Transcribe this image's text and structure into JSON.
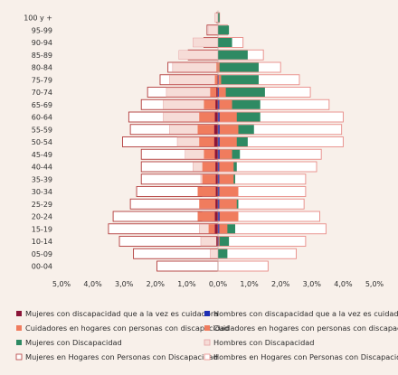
{
  "chart_data": {
    "type": "bar",
    "title": "",
    "xlabel": "",
    "ylabel": "",
    "xlim": [
      -5,
      5
    ],
    "x_ticks": [
      "5,0%",
      "4,0%",
      "3,0%",
      "2,0%",
      "1,0%",
      "0,0%",
      "1,0%",
      "2,0%",
      "3,0%",
      "4,0%",
      "5,0%"
    ],
    "grid": false,
    "legend_position": "bottom",
    "categories": [
      "100 y +",
      "95-99",
      "90-94",
      "85-89",
      "80-84",
      "75-79",
      "70-74",
      "65-69",
      "60-64",
      "55-59",
      "50-54",
      "45-49",
      "40-44",
      "35-39",
      "30-34",
      "25-29",
      "20-24",
      "15-19",
      "10-14",
      "05-09",
      "00-04"
    ],
    "colors": {
      "background": "#f8f0ea",
      "mujeres_cuidadora": "#8b1538",
      "hombres_cuidador": "#1f2fb5",
      "cuidadores_hogares": "#f07c5e",
      "mujeres_discapacidad": "#2e8a63",
      "hombres_discapacidad": "#f6dcd7",
      "hombres_discapacidad_border": "#e5a2a2",
      "mujeres_hogares_fill": "#ffffff",
      "mujeres_hogares_border": "#b23a3a",
      "hombres_hogares_border": "#e88b87"
    },
    "series": [
      {
        "name": "Mujeres con discapacidad que a la vez es cuidadora",
        "values": [
          0,
          0,
          0,
          0,
          0,
          0.02,
          0.05,
          0.08,
          0.1,
          0.12,
          0.12,
          0.1,
          0.08,
          0.07,
          0.07,
          0.08,
          0.1,
          0.1,
          0.05,
          0,
          0
        ]
      },
      {
        "name": "Hombres con discapacidad que a la vez es cuidador",
        "values": [
          0,
          0,
          0,
          0,
          0,
          0.02,
          0.03,
          0.04,
          0.05,
          0.05,
          0.05,
          0.05,
          0.04,
          0.04,
          0.04,
          0.04,
          0.05,
          0.04,
          0.02,
          0,
          0
        ]
      },
      {
        "name": "Cuidadores en hogares con personas con discapacidad",
        "values": [
          0,
          0,
          0,
          0,
          0.05,
          0.1,
          0.25,
          0.45,
          0.6,
          0.65,
          0.6,
          0.45,
          0.5,
          0.5,
          0.65,
          0.6,
          0.65,
          0.3,
          0.05,
          0,
          0
        ]
      },
      {
        "name": "Cuidadores en hogares con personas con discapacidad",
        "values": [
          0,
          0,
          0,
          0,
          0.05,
          0.1,
          0.25,
          0.45,
          0.6,
          0.65,
          0.6,
          0.45,
          0.5,
          0.5,
          0.65,
          0.6,
          0.65,
          0.3,
          0.05,
          0,
          0
        ]
      },
      {
        "name": "Mujeres con Discapacidad",
        "values": [
          0.1,
          0.3,
          0.8,
          1.25,
          1.45,
          1.55,
          1.65,
          1.75,
          1.75,
          1.55,
          1.3,
          1.05,
          0.8,
          0.55,
          0.5,
          0.55,
          0.5,
          0.6,
          0.55,
          0.25,
          0
        ]
      },
      {
        "name": "Hombres con Discapacidad",
        "values": [
          0.05,
          0.35,
          0.45,
          0.95,
          1.3,
          1.3,
          1.5,
          1.35,
          1.35,
          1.15,
          0.95,
          0.7,
          0.6,
          0.55,
          0.6,
          0.65,
          0.55,
          0.55,
          0.35,
          0.3,
          0
        ]
      },
      {
        "name": "Mujeres en Hogares con Personas con Discapacidad",
        "values": [
          0.05,
          0.35,
          0.45,
          0.95,
          1.6,
          1.85,
          2.25,
          2.45,
          2.85,
          2.8,
          3.05,
          2.45,
          2.45,
          2.45,
          2.6,
          2.8,
          3.35,
          3.5,
          3.15,
          2.7,
          1.95
        ]
      },
      {
        "name": "Hombres en Hogares con Personas con Discapacidad",
        "values": [
          0.05,
          0.3,
          0.8,
          1.45,
          2.0,
          2.6,
          2.95,
          3.55,
          4.0,
          3.95,
          4.0,
          3.3,
          3.15,
          2.8,
          2.8,
          2.75,
          3.25,
          3.45,
          2.8,
          2.5,
          1.6
        ]
      }
    ]
  }
}
